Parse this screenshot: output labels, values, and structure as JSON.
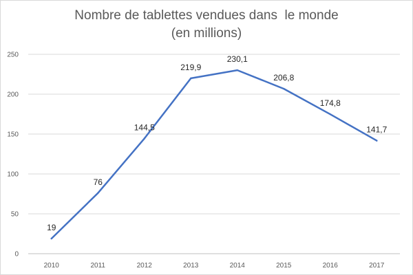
{
  "chart_data": {
    "type": "line",
    "title_line1": "Nombre de tablettes vendues dans  le monde",
    "title_line2": "(en millions)",
    "x": [
      "2010",
      "2011",
      "2012",
      "2013",
      "2014",
      "2015",
      "2016",
      "2017"
    ],
    "series": [
      {
        "values": [
          19,
          76,
          144.5,
          219.9,
          230.1,
          206.8,
          174.8,
          141.7
        ],
        "labels": [
          "19",
          "76",
          "144,5",
          "219,9",
          "230,1",
          "206,8",
          "174,8",
          "141,7"
        ],
        "color": "#4472c4"
      }
    ],
    "y_ticks": [
      "0",
      "50",
      "100",
      "150",
      "200",
      "250"
    ],
    "ylim": [
      0,
      250
    ],
    "grid": "horizontal",
    "legend": "none",
    "xlabel": "",
    "ylabel": ""
  }
}
